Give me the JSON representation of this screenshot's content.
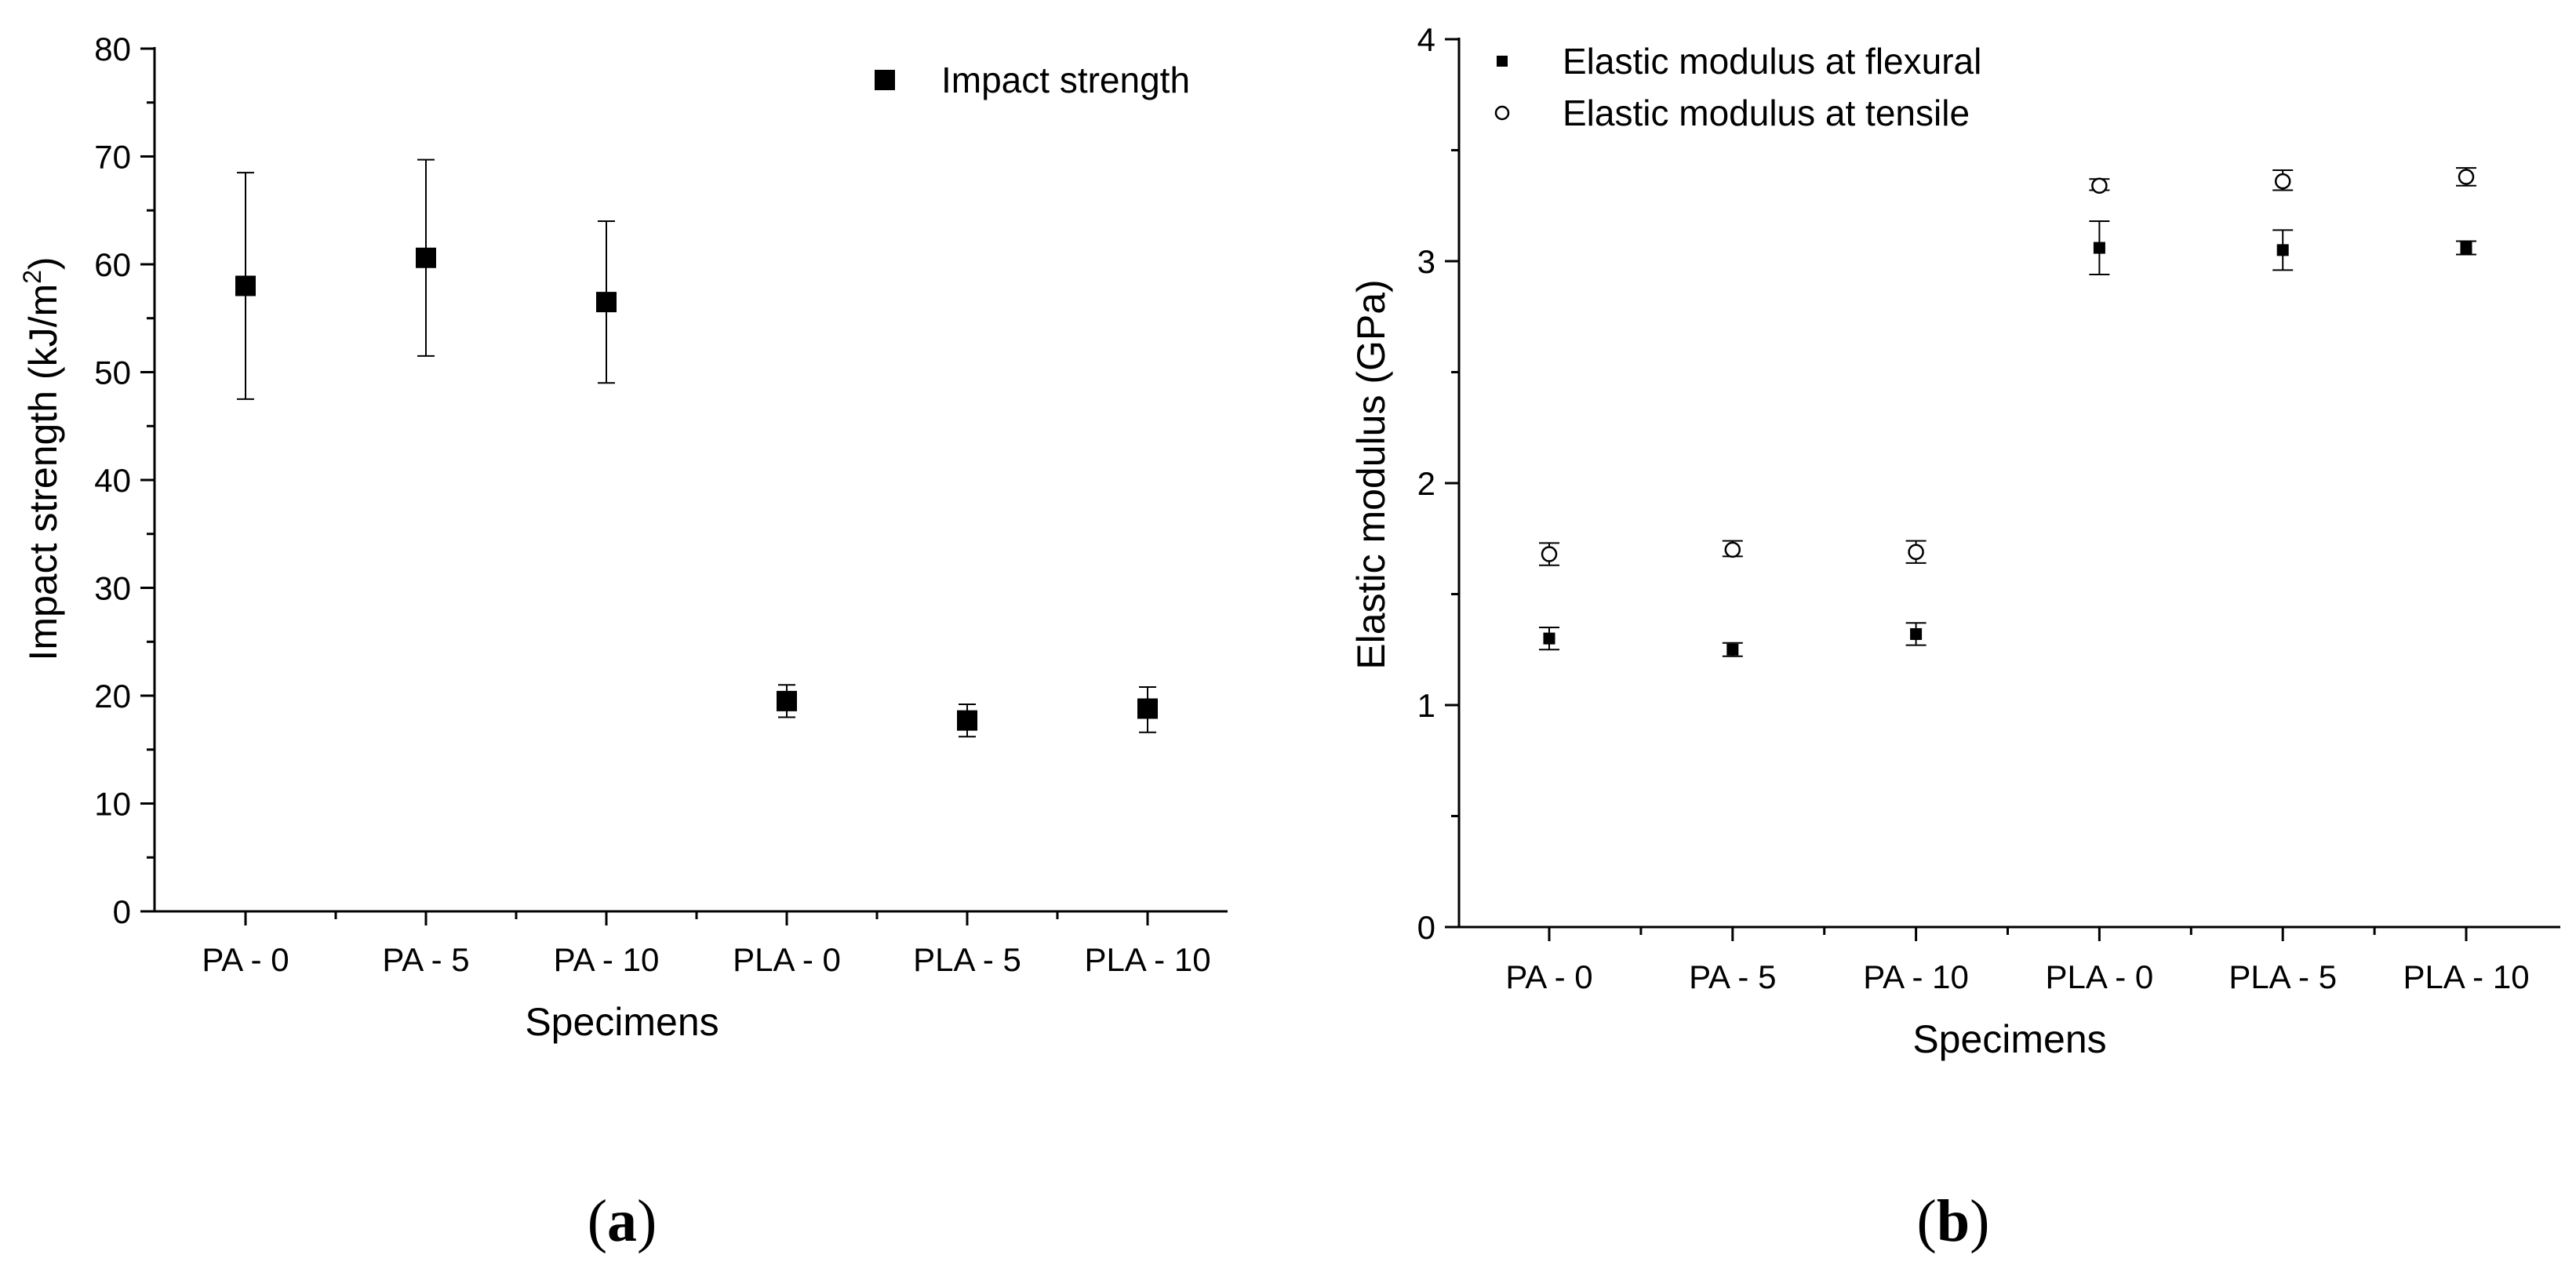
{
  "colors": {
    "ink": "#000000",
    "background": "#ffffff"
  },
  "chart_data": [
    {
      "panel": "a",
      "caption": "a",
      "type": "scatter",
      "title": "",
      "xlabel": "Specimens",
      "ylabel_main": "Impact strength (kJ/m",
      "ylabel_sup": "2",
      "ylabel_end": ")",
      "categories": [
        "PA - 0",
        "PA - 5",
        "PA - 10",
        "PLA - 0",
        "PLA - 5",
        "PLA - 10"
      ],
      "ylim": [
        0,
        80
      ],
      "y_major_ticks": [
        "0",
        "10",
        "20",
        "30",
        "40",
        "50",
        "60",
        "70",
        "80"
      ],
      "legend_position": "top-right",
      "series": [
        {
          "name": "Impact strength",
          "marker": "filled-square",
          "values": [
            58.0,
            60.6,
            56.5,
            19.5,
            17.7,
            18.8
          ],
          "error_low": [
            47.5,
            51.5,
            49.0,
            18.0,
            16.2,
            16.6
          ],
          "error_high": [
            68.5,
            69.7,
            64.0,
            21.0,
            19.2,
            20.8
          ]
        }
      ]
    },
    {
      "panel": "b",
      "caption": "b",
      "type": "scatter",
      "title": "",
      "xlabel": "Specimens",
      "ylabel": "Elastic modulus (GPa)",
      "categories": [
        "PA - 0",
        "PA - 5",
        "PA - 10",
        "PLA - 0",
        "PLA - 5",
        "PLA - 10"
      ],
      "ylim": [
        0,
        4
      ],
      "y_major_ticks": [
        "0",
        "1",
        "2",
        "3",
        "4"
      ],
      "legend_position": "top-left",
      "series": [
        {
          "name": "Elastic modulus at flexural",
          "marker": "filled-square",
          "values": [
            1.3,
            1.25,
            1.32,
            3.06,
            3.05,
            3.06
          ],
          "error_low": [
            1.25,
            1.22,
            1.27,
            2.94,
            2.96,
            3.03
          ],
          "error_high": [
            1.35,
            1.28,
            1.37,
            3.18,
            3.14,
            3.09
          ]
        },
        {
          "name": "Elastic modulus at tensile",
          "marker": "open-circle",
          "values": [
            1.68,
            1.7,
            1.69,
            3.34,
            3.36,
            3.38
          ],
          "error_low": [
            1.63,
            1.67,
            1.64,
            3.32,
            3.32,
            3.34
          ],
          "error_high": [
            1.73,
            1.74,
            1.74,
            3.37,
            3.41,
            3.42
          ]
        }
      ]
    }
  ]
}
